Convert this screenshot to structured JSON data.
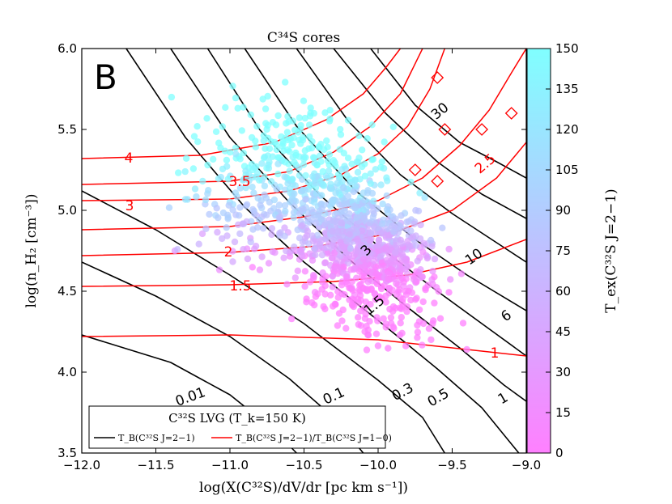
{
  "chart_data": {
    "type": "scatter",
    "title": "C³⁴S cores",
    "panel_label": "B",
    "xlabel": "log(X(C³²S)/dV/dr [pc km s⁻¹])",
    "ylabel": "log(n_H₂ [cm⁻³])",
    "xlim": [
      -12.0,
      -9.0
    ],
    "ylim": [
      3.5,
      6.0
    ],
    "xticks": [
      "−12.0",
      "−11.5",
      "−11.0",
      "−10.5",
      "−10.0",
      "−9.5",
      "−9.0"
    ],
    "yticks": [
      "3.5",
      "4.0",
      "4.5",
      "5.0",
      "5.5",
      "6.0"
    ],
    "colorbar": {
      "label": "T_ex(C³²S J=2−1)",
      "min": 0,
      "max": 150,
      "ticks": [
        "0",
        "15",
        "30",
        "45",
        "60",
        "75",
        "90",
        "105",
        "120",
        "135",
        "150"
      ],
      "color_low": "#ff80ff",
      "color_high": "#80ffff"
    },
    "legend": {
      "title": "C³²S LVG (T_k=150 K)",
      "entries": [
        {
          "label": "T_B(C³²S J=2−1)",
          "color": "#000000"
        },
        {
          "label": "T_B(C³²S J=2−1)/T_B(C³²S J=1−0)",
          "color": "#ff0000"
        }
      ]
    },
    "black_contour_labels": [
      "0.01",
      "0.1",
      "0.3",
      "0.5",
      "1",
      "1.5",
      "3",
      "6",
      "10",
      "30"
    ],
    "red_contour_labels": [
      "1",
      "1.5",
      "2",
      "2.5",
      "3",
      "3.5",
      "4"
    ],
    "cores_summary": {
      "x_range": [
        -11.4,
        -9.2
      ],
      "y_range": [
        4.15,
        5.8
      ],
      "dense_center": [
        -10.1,
        4.78
      ],
      "note": "approx. 1500 cores; colour encodes T_ex"
    }
  }
}
